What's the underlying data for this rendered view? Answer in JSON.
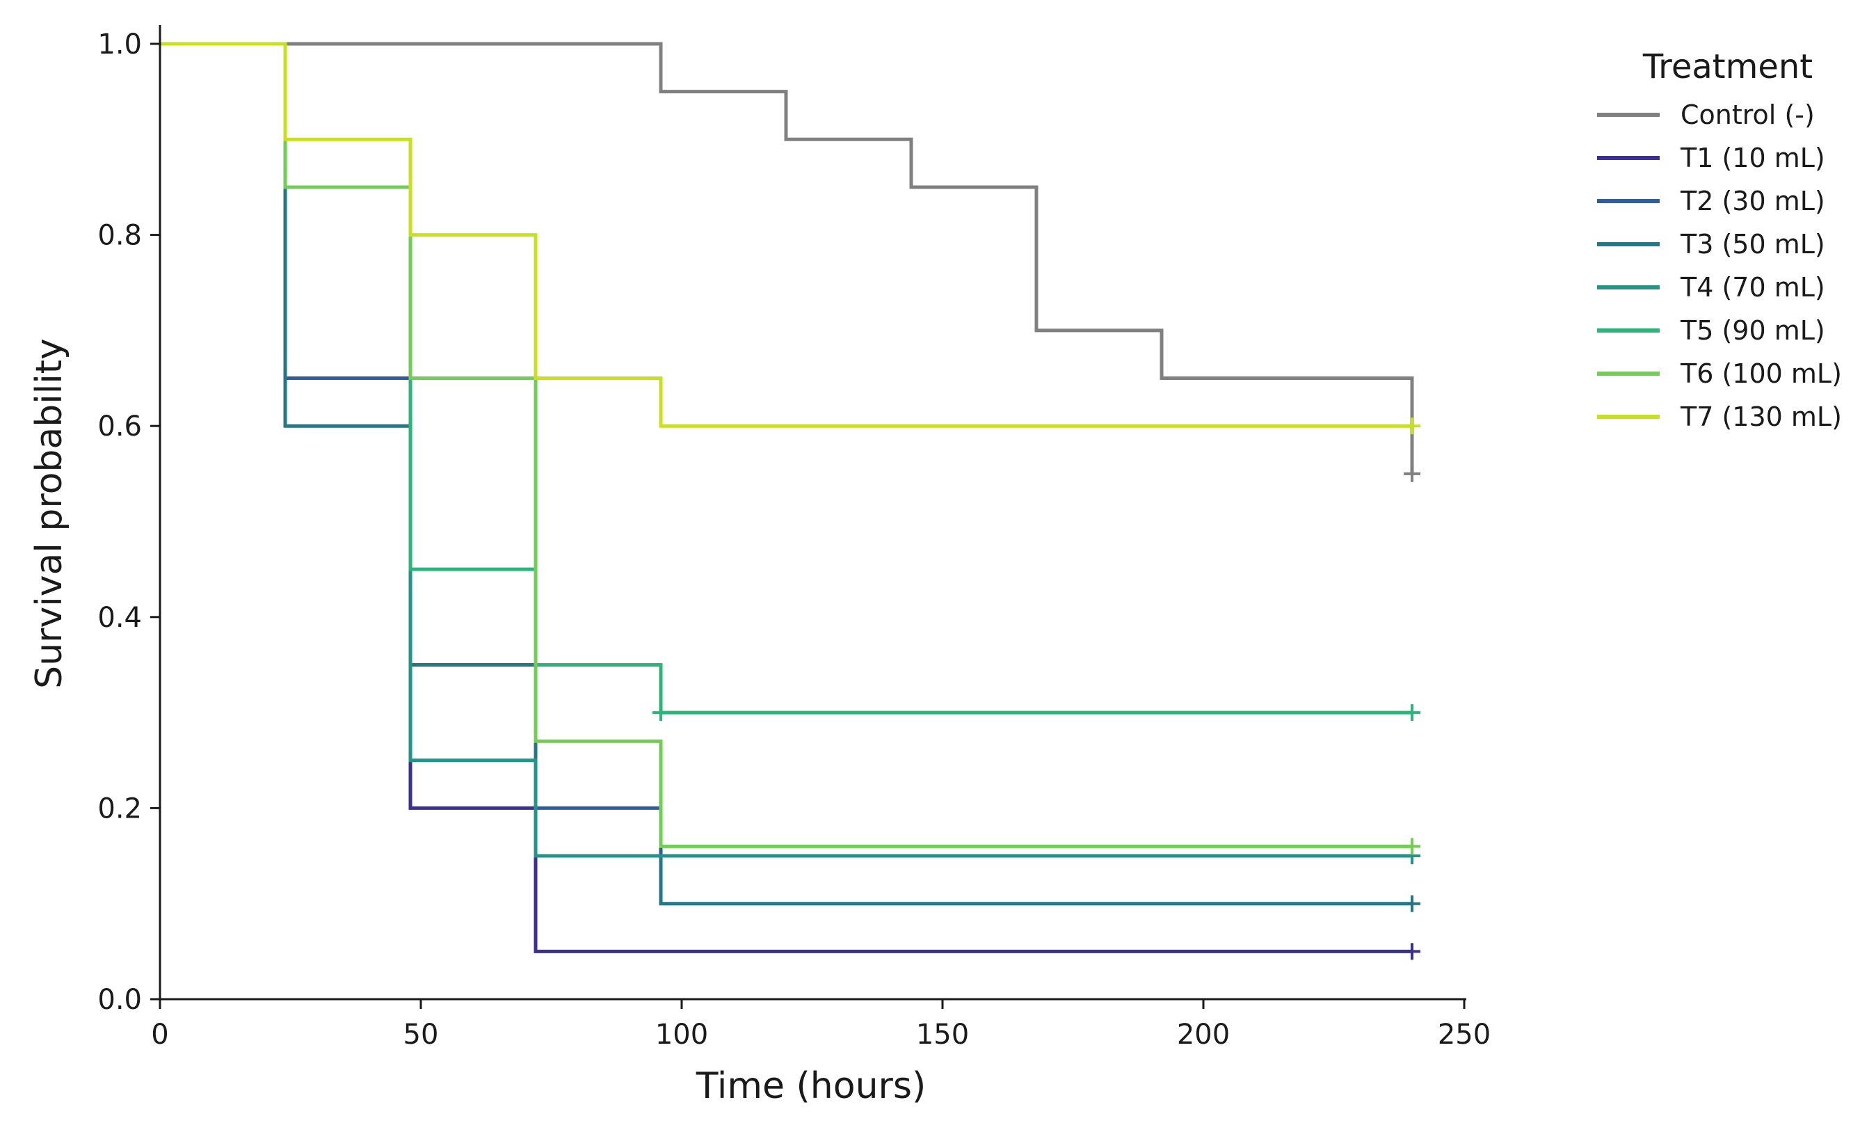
{
  "chart_data": {
    "type": "line",
    "step": "post",
    "xlabel": "Time (hours)",
    "ylabel": "Survival probability",
    "xlim": [
      0,
      250
    ],
    "ylim": [
      0,
      1.0
    ],
    "xticks": [
      "0",
      "50",
      "100",
      "150",
      "200",
      "250"
    ],
    "yticks": [
      "0.0",
      "0.2",
      "0.4",
      "0.6",
      "0.8",
      "1.0"
    ],
    "grid": false,
    "legend": {
      "title": "Treatment",
      "placement": "outside-right-top"
    },
    "series": [
      {
        "name": "Control (-)",
        "color": "#808080",
        "x": [
          0,
          96,
          120,
          144,
          168,
          192,
          240
        ],
        "y": [
          1.0,
          0.95,
          0.9,
          0.85,
          0.7,
          0.65,
          0.55
        ],
        "censor": [
          [
            240,
            0.55
          ]
        ]
      },
      {
        "name": "T1 (10 mL)",
        "color": "#3b2f8f",
        "x": [
          0,
          24,
          48,
          72,
          240
        ],
        "y": [
          1.0,
          0.85,
          0.2,
          0.05,
          0.05
        ],
        "censor": [
          [
            240,
            0.05
          ]
        ]
      },
      {
        "name": "T2 (30 mL)",
        "color": "#2e5c9c",
        "x": [
          0,
          24,
          48,
          72,
          96,
          240
        ],
        "y": [
          1.0,
          0.65,
          0.35,
          0.2,
          0.15,
          0.15
        ],
        "censor": [
          [
            240,
            0.15
          ]
        ]
      },
      {
        "name": "T3 (50 mL)",
        "color": "#267685",
        "x": [
          0,
          24,
          48,
          72,
          96,
          240
        ],
        "y": [
          1.0,
          0.6,
          0.35,
          0.15,
          0.1,
          0.1
        ],
        "censor": [
          [
            240,
            0.1
          ]
        ]
      },
      {
        "name": "T4 (70 mL)",
        "color": "#23948a",
        "x": [
          0,
          24,
          48,
          72,
          240
        ],
        "y": [
          1.0,
          0.85,
          0.25,
          0.15,
          0.15
        ],
        "censor": [
          [
            240,
            0.15
          ]
        ]
      },
      {
        "name": "T5 (90 mL)",
        "color": "#2eb37a",
        "x": [
          0,
          24,
          48,
          72,
          96,
          240
        ],
        "y": [
          1.0,
          0.85,
          0.45,
          0.35,
          0.3,
          0.3
        ],
        "censor": [
          [
            96,
            0.3
          ],
          [
            240,
            0.3
          ]
        ]
      },
      {
        "name": "T6 (100 mL)",
        "color": "#72cc55",
        "x": [
          0,
          24,
          48,
          72,
          96,
          240
        ],
        "y": [
          1.0,
          0.85,
          0.65,
          0.27,
          0.16,
          0.16
        ],
        "censor": [
          [
            240,
            0.16
          ]
        ]
      },
      {
        "name": "T7 (130 mL)",
        "color": "#c8e020",
        "x": [
          0,
          24,
          48,
          72,
          96,
          240
        ],
        "y": [
          1.0,
          0.9,
          0.8,
          0.65,
          0.6,
          0.6
        ],
        "censor": [
          [
            240,
            0.6
          ]
        ]
      }
    ]
  }
}
